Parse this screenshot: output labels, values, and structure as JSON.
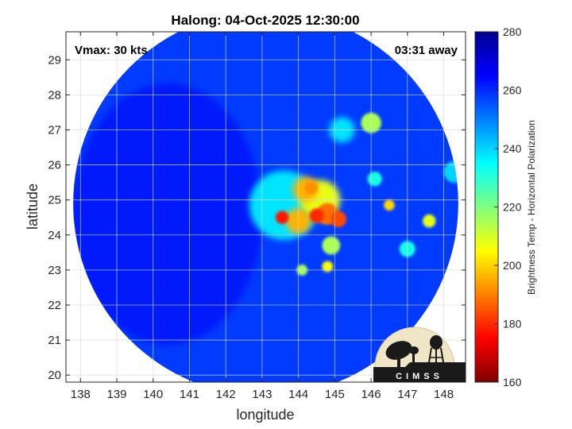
{
  "chart_data": {
    "type": "heatmap",
    "title": "Halong: 04-Oct-2025 12:30:00",
    "xlabel": "longitude",
    "ylabel": "latitude",
    "xlim": [
      137.6,
      148.6
    ],
    "ylim": [
      19.8,
      29.8
    ],
    "x_ticks": [
      138,
      139,
      140,
      141,
      142,
      143,
      144,
      145,
      146,
      147,
      148
    ],
    "y_ticks": [
      20,
      21,
      22,
      23,
      24,
      25,
      26,
      27,
      28,
      29
    ],
    "grid": true,
    "colorbar": {
      "label": "Brightness Temp - Horizontal Polarization",
      "min": 160,
      "max": 280,
      "ticks": [
        160,
        180,
        200,
        220,
        240,
        260,
        280
      ],
      "colormap": [
        "#7f0000",
        "#ff0000",
        "#ff7f00",
        "#ffff00",
        "#7fff7f",
        "#00ffff",
        "#007fff",
        "#0000ff",
        "#00008f"
      ]
    },
    "swath": {
      "center_lon": 143.1,
      "center_lat": 24.9,
      "radius_deg": 5.3,
      "background_value": 258
    },
    "cold_features": [
      {
        "lon": 143.6,
        "lat": 24.85,
        "radius": 0.95,
        "value": 238
      },
      {
        "lon": 144.6,
        "lat": 25.0,
        "radius": 0.55,
        "value": 208
      },
      {
        "lon": 144.2,
        "lat": 25.3,
        "radius": 0.35,
        "value": 196
      },
      {
        "lon": 144.8,
        "lat": 24.6,
        "radius": 0.3,
        "value": 188
      },
      {
        "lon": 144.0,
        "lat": 24.4,
        "radius": 0.35,
        "value": 196
      },
      {
        "lon": 143.55,
        "lat": 24.5,
        "radius": 0.18,
        "value": 178
      },
      {
        "lon": 144.5,
        "lat": 24.55,
        "radius": 0.2,
        "value": 180
      },
      {
        "lon": 145.1,
        "lat": 24.45,
        "radius": 0.22,
        "value": 184
      },
      {
        "lon": 144.35,
        "lat": 25.35,
        "radius": 0.18,
        "value": 192
      },
      {
        "lon": 144.9,
        "lat": 23.7,
        "radius": 0.25,
        "value": 215
      },
      {
        "lon": 144.8,
        "lat": 23.1,
        "radius": 0.15,
        "value": 205
      },
      {
        "lon": 144.1,
        "lat": 23.0,
        "radius": 0.15,
        "value": 215
      },
      {
        "lon": 146.0,
        "lat": 27.2,
        "radius": 0.28,
        "value": 215
      },
      {
        "lon": 145.2,
        "lat": 27.0,
        "radius": 0.35,
        "value": 238
      },
      {
        "lon": 146.5,
        "lat": 24.85,
        "radius": 0.15,
        "value": 200
      },
      {
        "lon": 147.6,
        "lat": 24.4,
        "radius": 0.18,
        "value": 208
      },
      {
        "lon": 146.1,
        "lat": 25.6,
        "radius": 0.2,
        "value": 232
      },
      {
        "lon": 147.0,
        "lat": 23.6,
        "radius": 0.22,
        "value": 232
      },
      {
        "lon": 148.3,
        "lat": 25.8,
        "radius": 0.3,
        "value": 240
      }
    ]
  },
  "annotations": {
    "vmax": "Vmax: 30 kts",
    "time_away": "03:31 away"
  },
  "logo": {
    "text": "CIMSS"
  }
}
